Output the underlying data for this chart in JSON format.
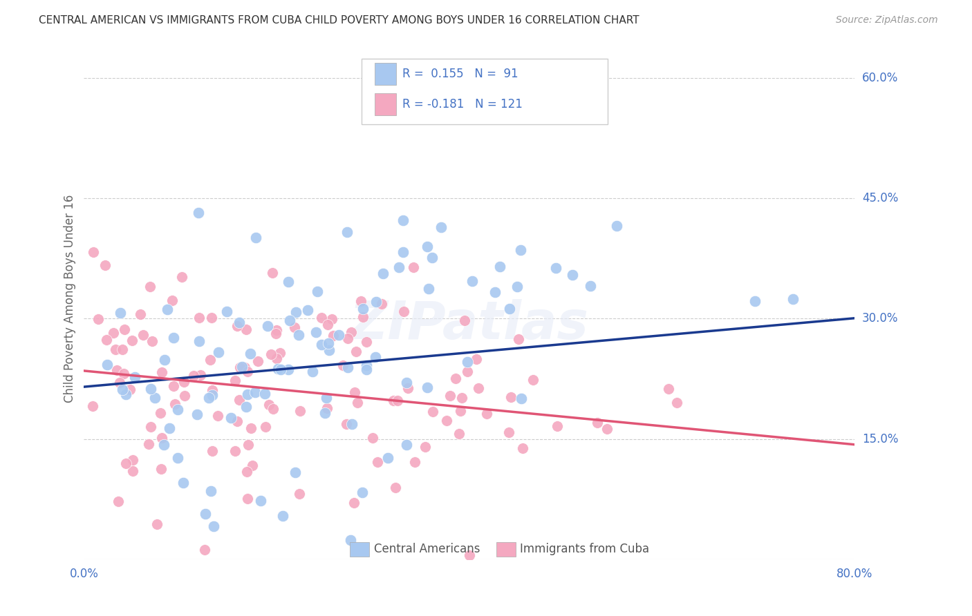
{
  "title": "CENTRAL AMERICAN VS IMMIGRANTS FROM CUBA CHILD POVERTY AMONG BOYS UNDER 16 CORRELATION CHART",
  "source": "Source: ZipAtlas.com",
  "ylabel": "Child Poverty Among Boys Under 16",
  "xlim": [
    0,
    0.8
  ],
  "ylim": [
    0,
    0.65
  ],
  "ytick_positions": [
    0.15,
    0.3,
    0.45,
    0.6
  ],
  "ytick_labels": [
    "15.0%",
    "30.0%",
    "45.0%",
    "60.0%"
  ],
  "blue_color": "#A8C8F0",
  "pink_color": "#F4A8C0",
  "blue_line_color": "#1A3A8F",
  "pink_line_color": "#E05575",
  "watermark": "ZIPatlas",
  "blue_N": 91,
  "pink_N": 121,
  "blue_intercept": 0.215,
  "blue_slope": 0.107,
  "pink_intercept": 0.235,
  "pink_slope": -0.115,
  "seed_blue": 42,
  "seed_pink": 123
}
